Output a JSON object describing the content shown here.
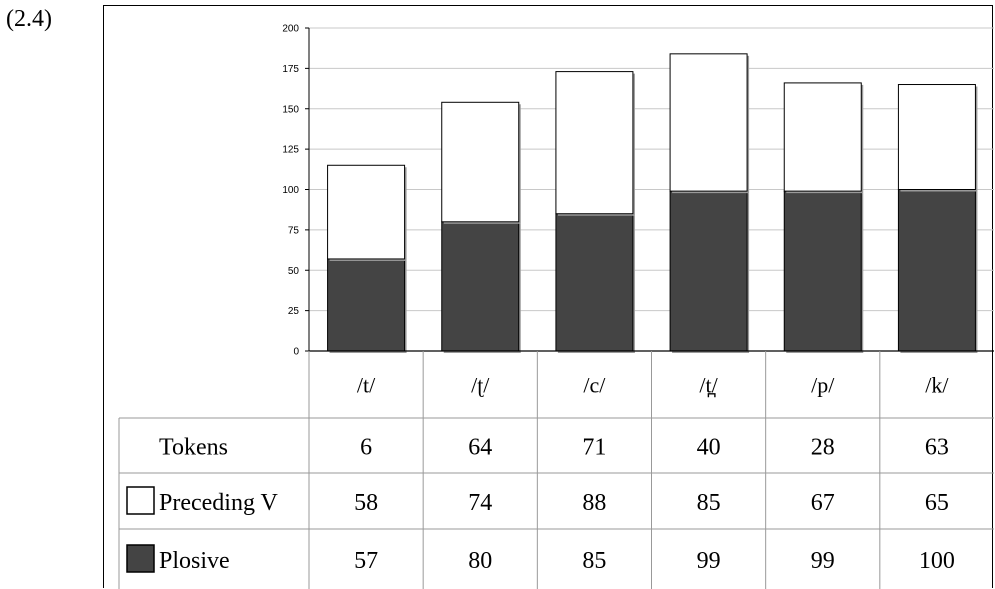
{
  "example_number": "(2.4)",
  "chart_data": {
    "type": "bar",
    "stacked": true,
    "categories": [
      "/t/",
      "/ʈ/",
      "/c/",
      "/t̪/",
      "/p/",
      "/k/"
    ],
    "ylim": [
      0,
      200
    ],
    "yticks": [
      "0",
      "25",
      "50",
      "75",
      "100",
      "125",
      "150",
      "175",
      "200"
    ],
    "grid": true,
    "series": [
      {
        "name": "Plosive",
        "values": [
          57,
          80,
          85,
          99,
          99,
          100
        ],
        "color": "#444444"
      },
      {
        "name": "Preceding V",
        "values": [
          58,
          74,
          88,
          85,
          67,
          65
        ],
        "color": "#ffffff"
      }
    ],
    "table": {
      "rows": [
        {
          "label": "Tokens",
          "swatch": "none",
          "values": [
            "6",
            "64",
            "71",
            "40",
            "28",
            "63"
          ]
        },
        {
          "label": "Preceding V",
          "swatch": "#ffffff",
          "values": [
            "58",
            "74",
            "88",
            "85",
            "67",
            "65"
          ]
        },
        {
          "label": "Plosive",
          "swatch": "#444444",
          "values": [
            "57",
            "80",
            "85",
            "99",
            "99",
            "100"
          ]
        }
      ]
    }
  }
}
